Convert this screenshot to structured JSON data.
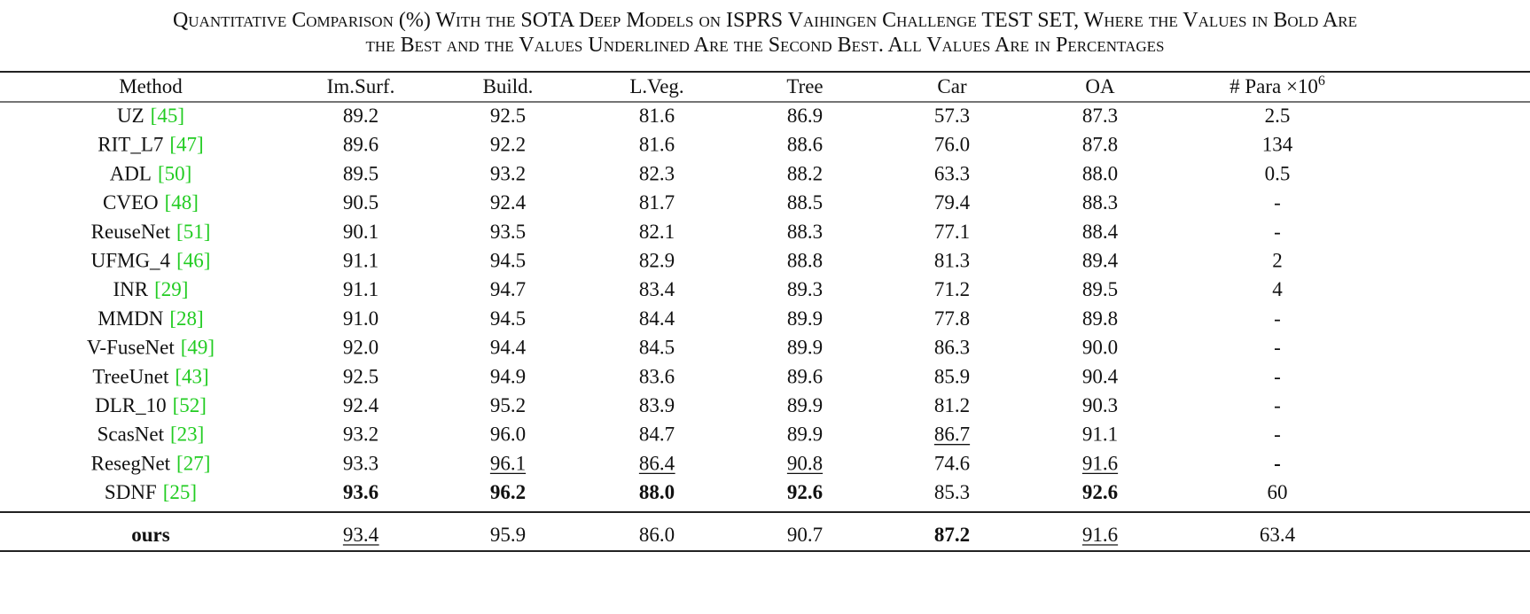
{
  "caption": [
    "Quantitative Comparison (%) With the SOTA Deep Models on ISPRS Vaihingen Challenge TEST SET, Where the Values in Bold Are",
    "the Best and the Values Underlined Are the Second Best. All Values Are in Percentages"
  ],
  "table": {
    "header": [
      "Method",
      "Im.Surf.",
      "Build.",
      "L.Veg.",
      "Tree",
      "Car",
      "OA",
      {
        "text": "# Para ×10",
        "sup": "6"
      }
    ],
    "rows": [
      {
        "method": "UZ",
        "ref": "[45]",
        "values": [
          "89.2",
          "92.5",
          "81.6",
          "86.9",
          "57.3",
          "87.3",
          "2.5"
        ]
      },
      {
        "method": "RIT_L7",
        "ref": "[47]",
        "values": [
          "89.6",
          "92.2",
          "81.6",
          "88.6",
          "76.0",
          "87.8",
          "134"
        ]
      },
      {
        "method": "ADL",
        "ref": "[50]",
        "values": [
          "89.5",
          "93.2",
          "82.3",
          "88.2",
          "63.3",
          "88.0",
          "0.5"
        ]
      },
      {
        "method": "CVEO",
        "ref": "[48]",
        "values": [
          "90.5",
          "92.4",
          "81.7",
          "88.5",
          "79.4",
          "88.3",
          "-"
        ]
      },
      {
        "method": "ReuseNet",
        "ref": "[51]",
        "values": [
          "90.1",
          "93.5",
          "82.1",
          "88.3",
          "77.1",
          "88.4",
          "-"
        ]
      },
      {
        "method": "UFMG_4",
        "ref": "[46]",
        "values": [
          "91.1",
          "94.5",
          "82.9",
          "88.8",
          "81.3",
          "89.4",
          "2"
        ]
      },
      {
        "method": "INR",
        "ref": "[29]",
        "values": [
          "91.1",
          "94.7",
          "83.4",
          "89.3",
          "71.2",
          "89.5",
          "4"
        ]
      },
      {
        "method": "MMDN",
        "ref": "[28]",
        "values": [
          "91.0",
          "94.5",
          "84.4",
          "89.9",
          "77.8",
          "89.8",
          "-"
        ]
      },
      {
        "method": "V-FuseNet",
        "ref": "[49]",
        "values": [
          "92.0",
          "94.4",
          "84.5",
          "89.9",
          "86.3",
          "90.0",
          "-"
        ]
      },
      {
        "method": "TreeUnet",
        "ref": "[43]",
        "values": [
          "92.5",
          "94.9",
          "83.6",
          "89.6",
          "85.9",
          "90.4",
          "-"
        ]
      },
      {
        "method": "DLR_10",
        "ref": "[52]",
        "values": [
          "92.4",
          "95.2",
          "83.9",
          "89.9",
          "81.2",
          "90.3",
          "-"
        ]
      },
      {
        "method": "ScasNet",
        "ref": "[23]",
        "values": [
          "93.2",
          "96.0",
          "84.7",
          "89.9",
          "86.7",
          "91.1",
          "-"
        ],
        "underline": [
          4
        ]
      },
      {
        "method": "ResegNet",
        "ref": "[27]",
        "values": [
          "93.3",
          "96.1",
          "86.4",
          "90.8",
          "74.6",
          "91.6",
          "-"
        ],
        "underline": [
          1,
          2,
          3,
          5
        ],
        "bold": [
          6
        ]
      },
      {
        "method": "SDNF",
        "ref": "[25]",
        "values": [
          "93.6",
          "96.2",
          "88.0",
          "92.6",
          "85.3",
          "92.6",
          "60"
        ],
        "bold": [
          0,
          1,
          2,
          3,
          5
        ]
      }
    ],
    "ours": {
      "method": "ours",
      "values": [
        "93.4",
        "95.9",
        "86.0",
        "90.7",
        "87.2",
        "91.6",
        "63.4"
      ],
      "bold": [
        4
      ],
      "underline": [
        0,
        5
      ],
      "method_bold": true
    }
  }
}
